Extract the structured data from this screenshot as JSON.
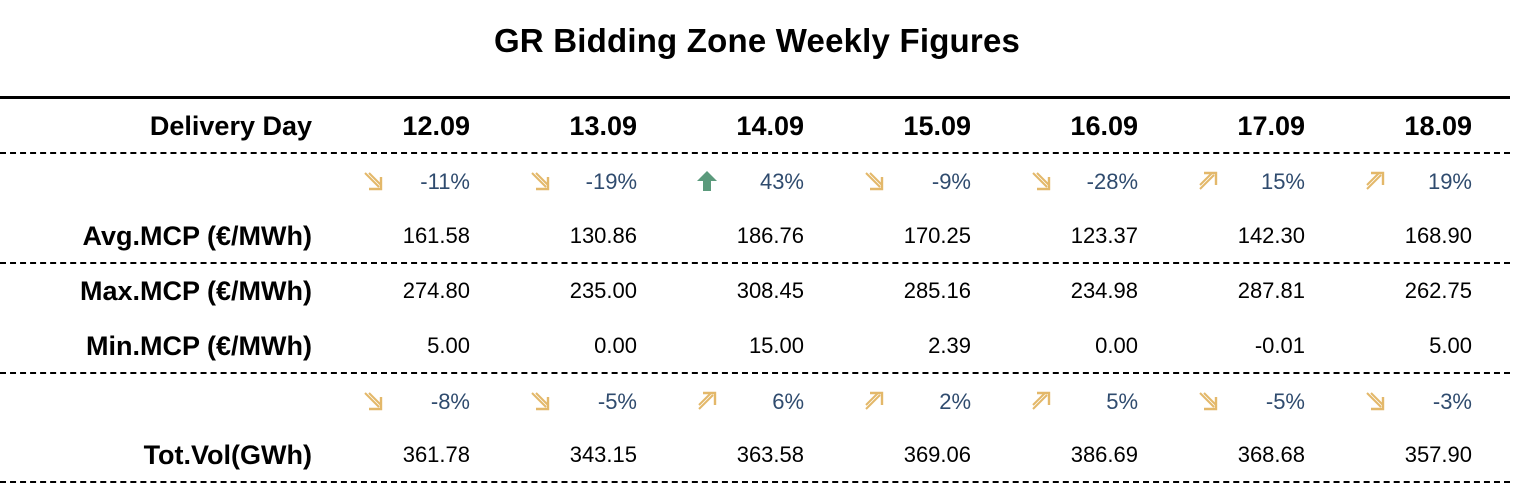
{
  "title": "GR Bidding Zone Weekly Figures",
  "colors": {
    "down_arrow": "#e3b86a",
    "up_small_arrow": "#e3b86a",
    "up_big_arrow": "#5b9a7c",
    "percent_text": "#2f4b6e"
  },
  "header": {
    "label": "Delivery Day",
    "days": [
      "12.09",
      "13.09",
      "14.09",
      "15.09",
      "16.09",
      "17.09",
      "18.09"
    ]
  },
  "avg_change": [
    {
      "value": "-11%",
      "icon": "arrow-down-right-icon"
    },
    {
      "value": "-19%",
      "icon": "arrow-down-right-icon"
    },
    {
      "value": "43%",
      "icon": "arrow-up-icon"
    },
    {
      "value": "-9%",
      "icon": "arrow-down-right-icon"
    },
    {
      "value": "-28%",
      "icon": "arrow-down-right-icon"
    },
    {
      "value": "15%",
      "icon": "arrow-up-right-icon"
    },
    {
      "value": "19%",
      "icon": "arrow-up-right-icon"
    }
  ],
  "avg_mcp": {
    "label": "Avg.MCP (€/MWh)",
    "values": [
      "161.58",
      "130.86",
      "186.76",
      "170.25",
      "123.37",
      "142.30",
      "168.90"
    ]
  },
  "max_mcp": {
    "label": "Max.MCP (€/MWh)",
    "values": [
      "274.80",
      "235.00",
      "308.45",
      "285.16",
      "234.98",
      "287.81",
      "262.75"
    ]
  },
  "min_mcp": {
    "label": "Min.MCP (€/MWh)",
    "values": [
      "5.00",
      "0.00",
      "15.00",
      "2.39",
      "0.00",
      "-0.01",
      "5.00"
    ]
  },
  "vol_change": [
    {
      "value": "-8%",
      "icon": "arrow-down-right-icon"
    },
    {
      "value": "-5%",
      "icon": "arrow-down-right-icon"
    },
    {
      "value": "6%",
      "icon": "arrow-up-right-icon"
    },
    {
      "value": "2%",
      "icon": "arrow-up-right-icon"
    },
    {
      "value": "5%",
      "icon": "arrow-up-right-icon"
    },
    {
      "value": "-5%",
      "icon": "arrow-down-right-icon"
    },
    {
      "value": "-3%",
      "icon": "arrow-down-right-icon"
    }
  ],
  "tot_vol": {
    "label": "Tot.Vol(GWh)",
    "values": [
      "361.78",
      "343.15",
      "363.58",
      "369.06",
      "386.69",
      "368.68",
      "357.90"
    ]
  }
}
